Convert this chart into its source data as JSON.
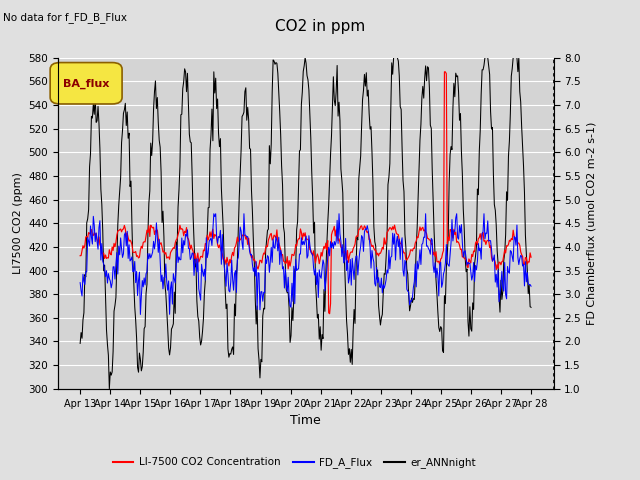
{
  "title": "CO2 in ppm",
  "no_data_text": "No data for f_FD_B_Flux",
  "ba_flux_label": "BA_flux",
  "xlabel": "Time",
  "ylabel_left": "LI7500 CO2 (ppm)",
  "ylabel_right": "FD Chamberflux (umol CO2 m-2 s-1)",
  "ylim_left": [
    300,
    580
  ],
  "ylim_right": [
    1.0,
    8.0
  ],
  "yticks_left": [
    300,
    320,
    340,
    360,
    380,
    400,
    420,
    440,
    460,
    480,
    500,
    520,
    540,
    560,
    580
  ],
  "yticks_right": [
    1.0,
    1.5,
    2.0,
    2.5,
    3.0,
    3.5,
    4.0,
    4.5,
    5.0,
    5.5,
    6.0,
    6.5,
    7.0,
    7.5,
    8.0
  ],
  "xtick_labels": [
    "Apr 13",
    "Apr 14",
    "Apr 15",
    "Apr 16",
    "Apr 17",
    "Apr 18",
    "Apr 19",
    "Apr 20",
    "Apr 21",
    "Apr 22",
    "Apr 23",
    "Apr 24",
    "Apr 25",
    "Apr 26",
    "Apr 27",
    "Apr 28"
  ],
  "legend_labels": [
    "LI-7500 CO2 Concentration",
    "FD_A_Flux",
    "er_ANNnight"
  ],
  "line_colors": [
    "red",
    "blue",
    "black"
  ],
  "bg_color": "#e0e0e0",
  "plot_bg_color": "#d4d4d4",
  "grid_color": "#ffffff",
  "n_points": 480,
  "seed": 42
}
